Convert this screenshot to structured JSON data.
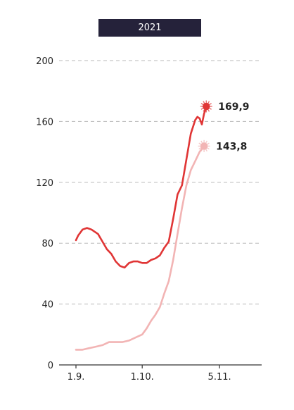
{
  "period_tab": "2021",
  "chart_data": {
    "type": "line",
    "ylim": [
      0,
      200
    ],
    "yticks": [
      "0",
      "40",
      "80",
      "120",
      "160",
      "200"
    ],
    "grid": true,
    "x_tick_labels": [
      {
        "label": "1.9.",
        "day": 0
      },
      {
        "label": "1.10.",
        "day": 30
      },
      {
        "label": "5.11.",
        "day": 65
      }
    ],
    "series": [
      {
        "color": "#e03535",
        "end_label": "169,9",
        "points": [
          [
            0,
            82
          ],
          [
            1,
            85
          ],
          [
            3,
            89
          ],
          [
            5,
            90
          ],
          [
            7,
            89
          ],
          [
            10,
            86
          ],
          [
            12,
            81
          ],
          [
            14,
            76
          ],
          [
            16,
            73
          ],
          [
            18,
            68
          ],
          [
            20,
            65
          ],
          [
            22,
            64
          ],
          [
            24,
            67
          ],
          [
            26,
            68
          ],
          [
            28,
            68
          ],
          [
            30,
            67
          ],
          [
            32,
            67
          ],
          [
            34,
            69
          ],
          [
            36,
            70
          ],
          [
            38,
            72
          ],
          [
            40,
            77
          ],
          [
            42,
            81
          ],
          [
            44,
            96
          ],
          [
            46,
            112
          ],
          [
            48,
            118
          ],
          [
            50,
            135
          ],
          [
            52,
            152
          ],
          [
            54,
            161
          ],
          [
            55,
            163
          ],
          [
            56,
            162
          ],
          [
            57,
            158
          ],
          [
            58,
            165
          ],
          [
            59,
            169.9
          ]
        ]
      },
      {
        "color": "#f2b4b4",
        "end_label": "143,8",
        "points": [
          [
            0,
            10
          ],
          [
            3,
            10
          ],
          [
            6,
            11
          ],
          [
            9,
            12
          ],
          [
            12,
            13
          ],
          [
            15,
            15
          ],
          [
            18,
            15
          ],
          [
            21,
            15
          ],
          [
            24,
            16
          ],
          [
            27,
            18
          ],
          [
            30,
            20
          ],
          [
            32,
            24
          ],
          [
            34,
            29
          ],
          [
            36,
            33
          ],
          [
            38,
            38
          ],
          [
            40,
            47
          ],
          [
            42,
            55
          ],
          [
            44,
            69
          ],
          [
            46,
            86
          ],
          [
            48,
            103
          ],
          [
            50,
            118
          ],
          [
            52,
            128
          ],
          [
            54,
            134
          ],
          [
            56,
            140
          ],
          [
            58,
            143.8
          ]
        ]
      }
    ]
  }
}
